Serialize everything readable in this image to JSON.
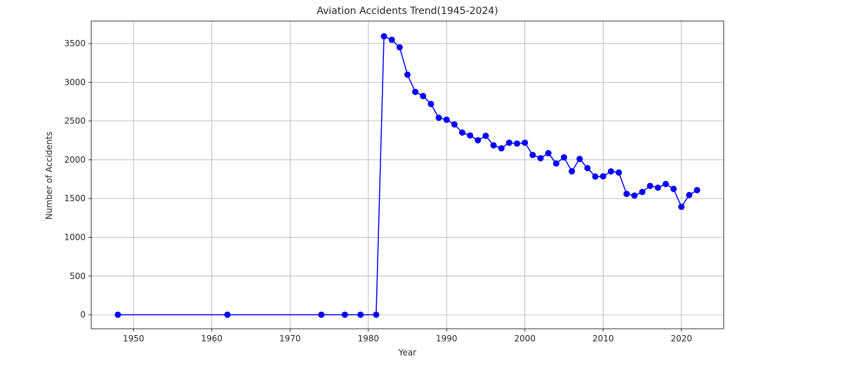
{
  "chart_data": {
    "type": "line",
    "title": "Aviation Accidents Trend(1945-2024)",
    "xlabel": "Year",
    "ylabel": "Number of Accidents",
    "xlim": [
      1944.6,
      2025.4
    ],
    "ylim": [
      -180,
      3790
    ],
    "xticks": [
      1950,
      1960,
      1970,
      1980,
      1990,
      2000,
      2010,
      2020
    ],
    "yticks": [
      0,
      500,
      1000,
      1500,
      2000,
      2500,
      3000,
      3500
    ],
    "grid": true,
    "series": [
      {
        "color": "#0000ff",
        "marker": "circle",
        "x": [
          1948,
          1962,
          1974,
          1977,
          1979,
          1981,
          1982,
          1983,
          1984,
          1985,
          1986,
          1987,
          1988,
          1989,
          1990,
          1991,
          1992,
          1993,
          1994,
          1995,
          1996,
          1997,
          1998,
          1999,
          2000,
          2001,
          2002,
          2003,
          2004,
          2005,
          2006,
          2007,
          2008,
          2009,
          2010,
          2011,
          2012,
          2013,
          2014,
          2015,
          2016,
          2017,
          2018,
          2019,
          2020,
          2021,
          2022
        ],
        "y": [
          1,
          1,
          1,
          1,
          1,
          1,
          3593,
          3548,
          3451,
          3098,
          2876,
          2822,
          2720,
          2542,
          2517,
          2456,
          2351,
          2314,
          2252,
          2309,
          2186,
          2148,
          2220,
          2209,
          2220,
          2062,
          2020,
          2085,
          1952,
          2031,
          1851,
          2011,
          1892,
          1783,
          1786,
          1850,
          1835,
          1560,
          1538,
          1585,
          1663,
          1640,
          1688,
          1624,
          1393,
          1545,
          1608
        ]
      }
    ]
  }
}
